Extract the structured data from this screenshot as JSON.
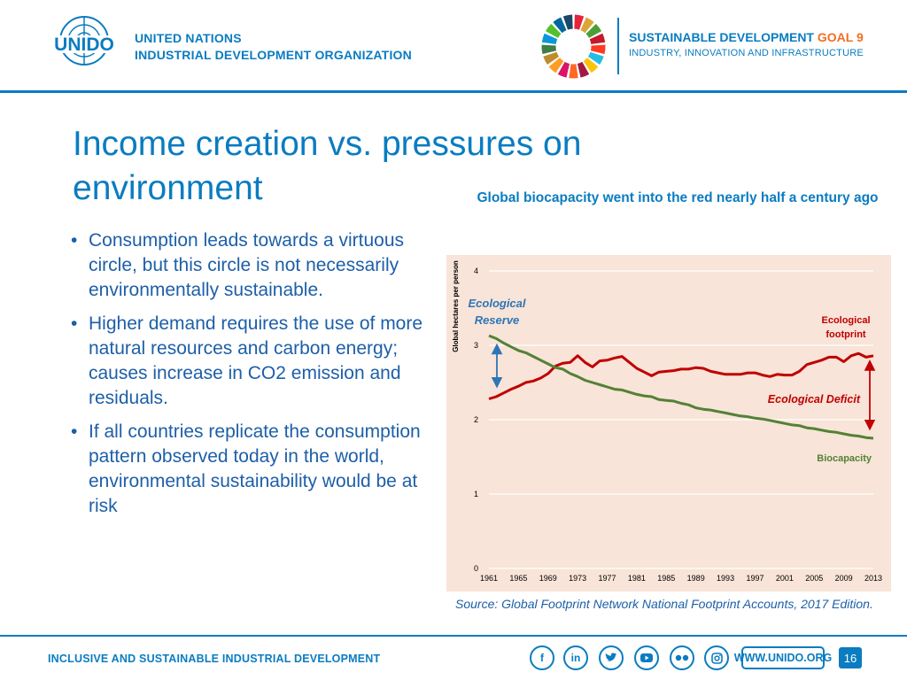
{
  "header": {
    "org_name_line1": "UNITED NATIONS",
    "org_name_line2": "INDUSTRIAL DEVELOPMENT ORGANIZATION",
    "logo_text": "UNIDO",
    "sdg_title_main": "SUSTAINABLE DEVELOPMENT ",
    "sdg_title_goal": "GOAL 9",
    "sdg_subtitle": "INDUSTRY, INNOVATION AND INFRASTRUCTURE"
  },
  "main": {
    "title": "Income creation vs. pressures on environment",
    "bullet_symbol": "•",
    "bullets": [
      "Consumption leads towards a virtuous circle, but this circle is not necessarily environmentally sustainable.",
      "Higher demand requires the use of more natural resources and carbon energy; causes increase in CO2 emission and residuals.",
      "If all countries replicate the consumption pattern observed today in the world, environmental sustainability would be at risk"
    ],
    "chart_heading": "Global biocapacity went into the red nearly half a century ago",
    "source": "Source: Global Footprint Network National Footprint Accounts, 2017 Edition."
  },
  "footer": {
    "tagline": "INCLUSIVE AND SUSTAINABLE INDUSTRIAL DEVELOPMENT",
    "website": "WWW.UNIDO.ORG",
    "page_number": "16",
    "social_icons": [
      "facebook-icon",
      "linkedin-icon",
      "twitter-icon",
      "youtube-icon",
      "flickr-icon",
      "instagram-icon"
    ]
  },
  "colors": {
    "brand_blue": "#0a7cc1",
    "footprint_red": "#c00000",
    "biocapacity_green": "#538135",
    "panel_bg": "#f8e4d8",
    "goal_orange": "#f36d25"
  },
  "chart_data": {
    "type": "line",
    "ylabel": "Global hectares per person",
    "ylim": [
      0,
      4
    ],
    "yticks": [
      0,
      1,
      2,
      3,
      4
    ],
    "xlim": [
      1961,
      2013
    ],
    "xticks": [
      1961,
      1965,
      1969,
      1973,
      1977,
      1981,
      1985,
      1989,
      1993,
      1997,
      2001,
      2005,
      2009,
      2013
    ],
    "series": [
      {
        "name": "Ecological footprint",
        "label": "Ecological footprint",
        "color": "#c00000",
        "x": [
          1961,
          1962,
          1963,
          1964,
          1965,
          1966,
          1967,
          1968,
          1969,
          1970,
          1971,
          1972,
          1973,
          1974,
          1975,
          1976,
          1977,
          1978,
          1979,
          1980,
          1981,
          1982,
          1983,
          1984,
          1985,
          1986,
          1987,
          1988,
          1989,
          1990,
          1991,
          1992,
          1993,
          1994,
          1995,
          1996,
          1997,
          1998,
          1999,
          2000,
          2001,
          2002,
          2003,
          2004,
          2005,
          2006,
          2007,
          2008,
          2009,
          2010,
          2011,
          2012,
          2013
        ],
        "values": [
          2.28,
          2.31,
          2.36,
          2.41,
          2.45,
          2.5,
          2.52,
          2.56,
          2.62,
          2.72,
          2.76,
          2.77,
          2.86,
          2.77,
          2.71,
          2.79,
          2.8,
          2.83,
          2.85,
          2.77,
          2.69,
          2.64,
          2.59,
          2.64,
          2.65,
          2.66,
          2.68,
          2.68,
          2.7,
          2.69,
          2.65,
          2.63,
          2.61,
          2.61,
          2.61,
          2.63,
          2.63,
          2.6,
          2.58,
          2.61,
          2.6,
          2.6,
          2.65,
          2.74,
          2.77,
          2.8,
          2.84,
          2.84,
          2.78,
          2.86,
          2.89,
          2.84,
          2.86
        ]
      },
      {
        "name": "Biocapacity",
        "label": "Biocapacity",
        "color": "#538135",
        "x": [
          1961,
          1962,
          1963,
          1964,
          1965,
          1966,
          1967,
          1968,
          1969,
          1970,
          1971,
          1972,
          1973,
          1974,
          1975,
          1976,
          1977,
          1978,
          1979,
          1980,
          1981,
          1982,
          1983,
          1984,
          1985,
          1986,
          1987,
          1988,
          1989,
          1990,
          1991,
          1992,
          1993,
          1994,
          1995,
          1996,
          1997,
          1998,
          1999,
          2000,
          2001,
          2002,
          2003,
          2004,
          2005,
          2006,
          2007,
          2008,
          2009,
          2010,
          2011,
          2012,
          2013
        ],
        "values": [
          3.13,
          3.09,
          3.03,
          2.98,
          2.93,
          2.9,
          2.85,
          2.8,
          2.75,
          2.7,
          2.68,
          2.62,
          2.58,
          2.53,
          2.5,
          2.47,
          2.44,
          2.41,
          2.4,
          2.37,
          2.34,
          2.32,
          2.31,
          2.27,
          2.26,
          2.25,
          2.22,
          2.2,
          2.16,
          2.14,
          2.13,
          2.11,
          2.09,
          2.07,
          2.05,
          2.04,
          2.02,
          2.01,
          1.99,
          1.97,
          1.95,
          1.93,
          1.92,
          1.89,
          1.88,
          1.86,
          1.84,
          1.83,
          1.81,
          1.79,
          1.78,
          1.76,
          1.75
        ]
      }
    ],
    "annotations": {
      "reserve": "Ecological Reserve",
      "deficit": "Ecological Deficit"
    },
    "reserve_arrow_values": [
      3.0,
      2.45
    ],
    "deficit_arrow_values": [
      2.78,
      1.88
    ]
  }
}
